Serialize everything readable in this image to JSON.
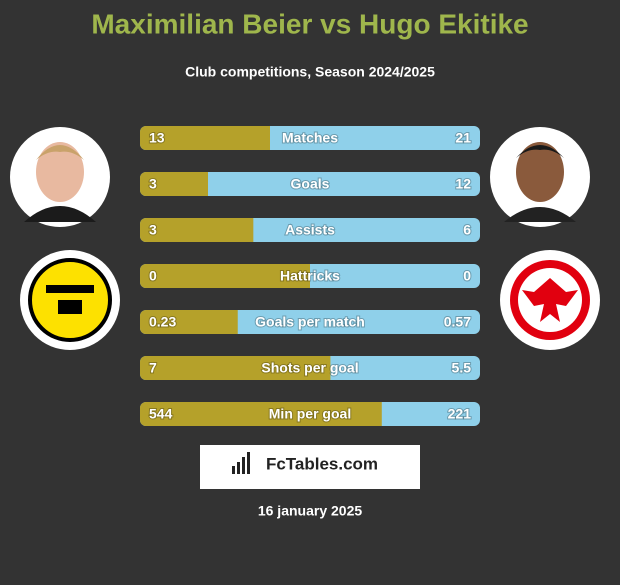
{
  "header": {
    "title": "Maximilian Beier vs Hugo Ekitike",
    "subtitle": "Club competitions, Season 2024/2025"
  },
  "rows": [
    {
      "label": "Matches",
      "left": 13,
      "right": 21
    },
    {
      "label": "Goals",
      "left": 3,
      "right": 12
    },
    {
      "label": "Assists",
      "left": 3,
      "right": 6
    },
    {
      "label": "Hattricks",
      "left": 0,
      "right": 0
    },
    {
      "label": "Goals per match",
      "left": 0.23,
      "right": 0.57
    },
    {
      "label": "Shots per goal",
      "left": 7,
      "right": 5.5
    },
    {
      "label": "Min per goal",
      "left": 544,
      "right": 221
    }
  ],
  "colors": {
    "left": "#b5a12a",
    "right": "#8fd0ea",
    "title": "#9fb64c"
  },
  "footer": {
    "brand": "FcTables.com",
    "date": "16 january 2025"
  }
}
